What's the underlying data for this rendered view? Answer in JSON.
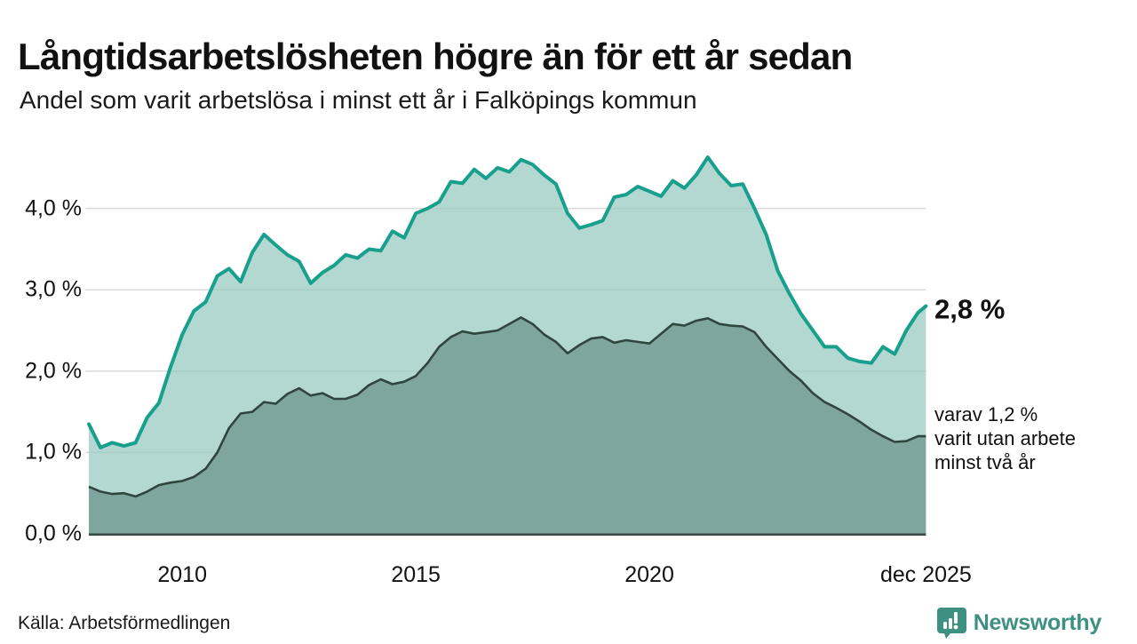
{
  "header": {
    "title": "Långtidsarbetslösheten högre än för ett år sedan",
    "subtitle": "Andel som varit arbetslösa i minst ett år i Falköpings kommun"
  },
  "annotations": {
    "latest_value": "2,8 %",
    "secondary_line1": "varav 1,2 %",
    "secondary_line2": "varit utan arbete",
    "secondary_line3": "minst två år"
  },
  "footer": {
    "source": "Källa: Arbetsförmedlingen",
    "brand": "Newsworthy"
  },
  "colors": {
    "line_primary": "#18a08d",
    "fill_primary": "rgba(149,201,193,0.72)",
    "line_secondary": "#2f453f",
    "fill_secondary": "rgba(116,157,149,0.85)",
    "gridline": "#d9d9d9",
    "baseline": "#3a4845",
    "brand_teal": "#3e9082",
    "text": "#111111"
  },
  "chart_data": {
    "type": "area",
    "title": "Långtidsarbetslösheten högre än för ett år sedan",
    "subtitle": "Andel som varit arbetslösa i minst ett år i Falköpings kommun",
    "unit": "%",
    "grid": true,
    "legend_position": "none",
    "xlim": [
      2008,
      2025.92
    ],
    "ylim": [
      0,
      4.81
    ],
    "x_ticks": [
      {
        "value": 2010,
        "label": "2010"
      },
      {
        "value": 2015,
        "label": "2015"
      },
      {
        "value": 2020,
        "label": "2020"
      },
      {
        "value": 2025.92,
        "label": "dec 2025"
      }
    ],
    "y_ticks": [
      {
        "value": 0,
        "label": "0,0 %"
      },
      {
        "value": 1,
        "label": "1,0 %"
      },
      {
        "value": 2,
        "label": "2,0 %"
      },
      {
        "value": 3,
        "label": "3,0 %"
      },
      {
        "value": 4,
        "label": "4,0 %"
      }
    ],
    "x": [
      2008.0,
      2008.25,
      2008.5,
      2008.75,
      2009.0,
      2009.25,
      2009.5,
      2009.75,
      2010.0,
      2010.25,
      2010.5,
      2010.75,
      2011.0,
      2011.25,
      2011.5,
      2011.75,
      2012.0,
      2012.25,
      2012.5,
      2012.75,
      2013.0,
      2013.25,
      2013.5,
      2013.75,
      2014.0,
      2014.25,
      2014.5,
      2014.75,
      2015.0,
      2015.25,
      2015.5,
      2015.75,
      2016.0,
      2016.25,
      2016.5,
      2016.75,
      2017.0,
      2017.25,
      2017.5,
      2017.75,
      2018.0,
      2018.25,
      2018.5,
      2018.75,
      2019.0,
      2019.25,
      2019.5,
      2019.75,
      2020.0,
      2020.25,
      2020.5,
      2020.75,
      2021.0,
      2021.25,
      2021.5,
      2021.75,
      2022.0,
      2022.25,
      2022.5,
      2022.75,
      2023.0,
      2023.25,
      2023.5,
      2023.75,
      2024.0,
      2024.25,
      2024.5,
      2024.75,
      2025.0,
      2025.25,
      2025.5,
      2025.75,
      2025.92
    ],
    "series": [
      {
        "name": "Andel arbetslösa minst ett år",
        "end_label": "2,8 %",
        "values": [
          1.35,
          1.06,
          1.12,
          1.08,
          1.12,
          1.43,
          1.61,
          2.05,
          2.45,
          2.74,
          2.85,
          3.17,
          3.26,
          3.1,
          3.46,
          3.68,
          3.55,
          3.43,
          3.35,
          3.08,
          3.21,
          3.3,
          3.43,
          3.39,
          3.5,
          3.48,
          3.72,
          3.64,
          3.94,
          4.0,
          4.08,
          4.33,
          4.31,
          4.48,
          4.37,
          4.5,
          4.45,
          4.6,
          4.54,
          4.41,
          4.3,
          3.94,
          3.76,
          3.8,
          3.85,
          4.14,
          4.17,
          4.27,
          4.21,
          4.15,
          4.34,
          4.25,
          4.41,
          4.63,
          4.43,
          4.28,
          4.3,
          4.0,
          3.68,
          3.23,
          2.95,
          2.7,
          2.5,
          2.3,
          2.3,
          2.16,
          2.12,
          2.1,
          2.3,
          2.21,
          2.5,
          2.72,
          2.8
        ]
      },
      {
        "name": "varav utan arbete minst två år",
        "end_label": "1,2 %",
        "values": [
          0.58,
          0.52,
          0.49,
          0.5,
          0.46,
          0.52,
          0.6,
          0.63,
          0.65,
          0.7,
          0.8,
          1.0,
          1.3,
          1.48,
          1.5,
          1.62,
          1.6,
          1.72,
          1.79,
          1.7,
          1.73,
          1.66,
          1.66,
          1.71,
          1.83,
          1.9,
          1.84,
          1.87,
          1.94,
          2.1,
          2.3,
          2.42,
          2.49,
          2.46,
          2.48,
          2.5,
          2.58,
          2.66,
          2.58,
          2.45,
          2.36,
          2.22,
          2.32,
          2.4,
          2.42,
          2.35,
          2.38,
          2.36,
          2.34,
          2.46,
          2.58,
          2.56,
          2.62,
          2.65,
          2.58,
          2.56,
          2.55,
          2.48,
          2.3,
          2.15,
          2.0,
          1.88,
          1.73,
          1.62,
          1.55,
          1.47,
          1.38,
          1.28,
          1.2,
          1.13,
          1.14,
          1.2,
          1.2
        ]
      }
    ]
  }
}
